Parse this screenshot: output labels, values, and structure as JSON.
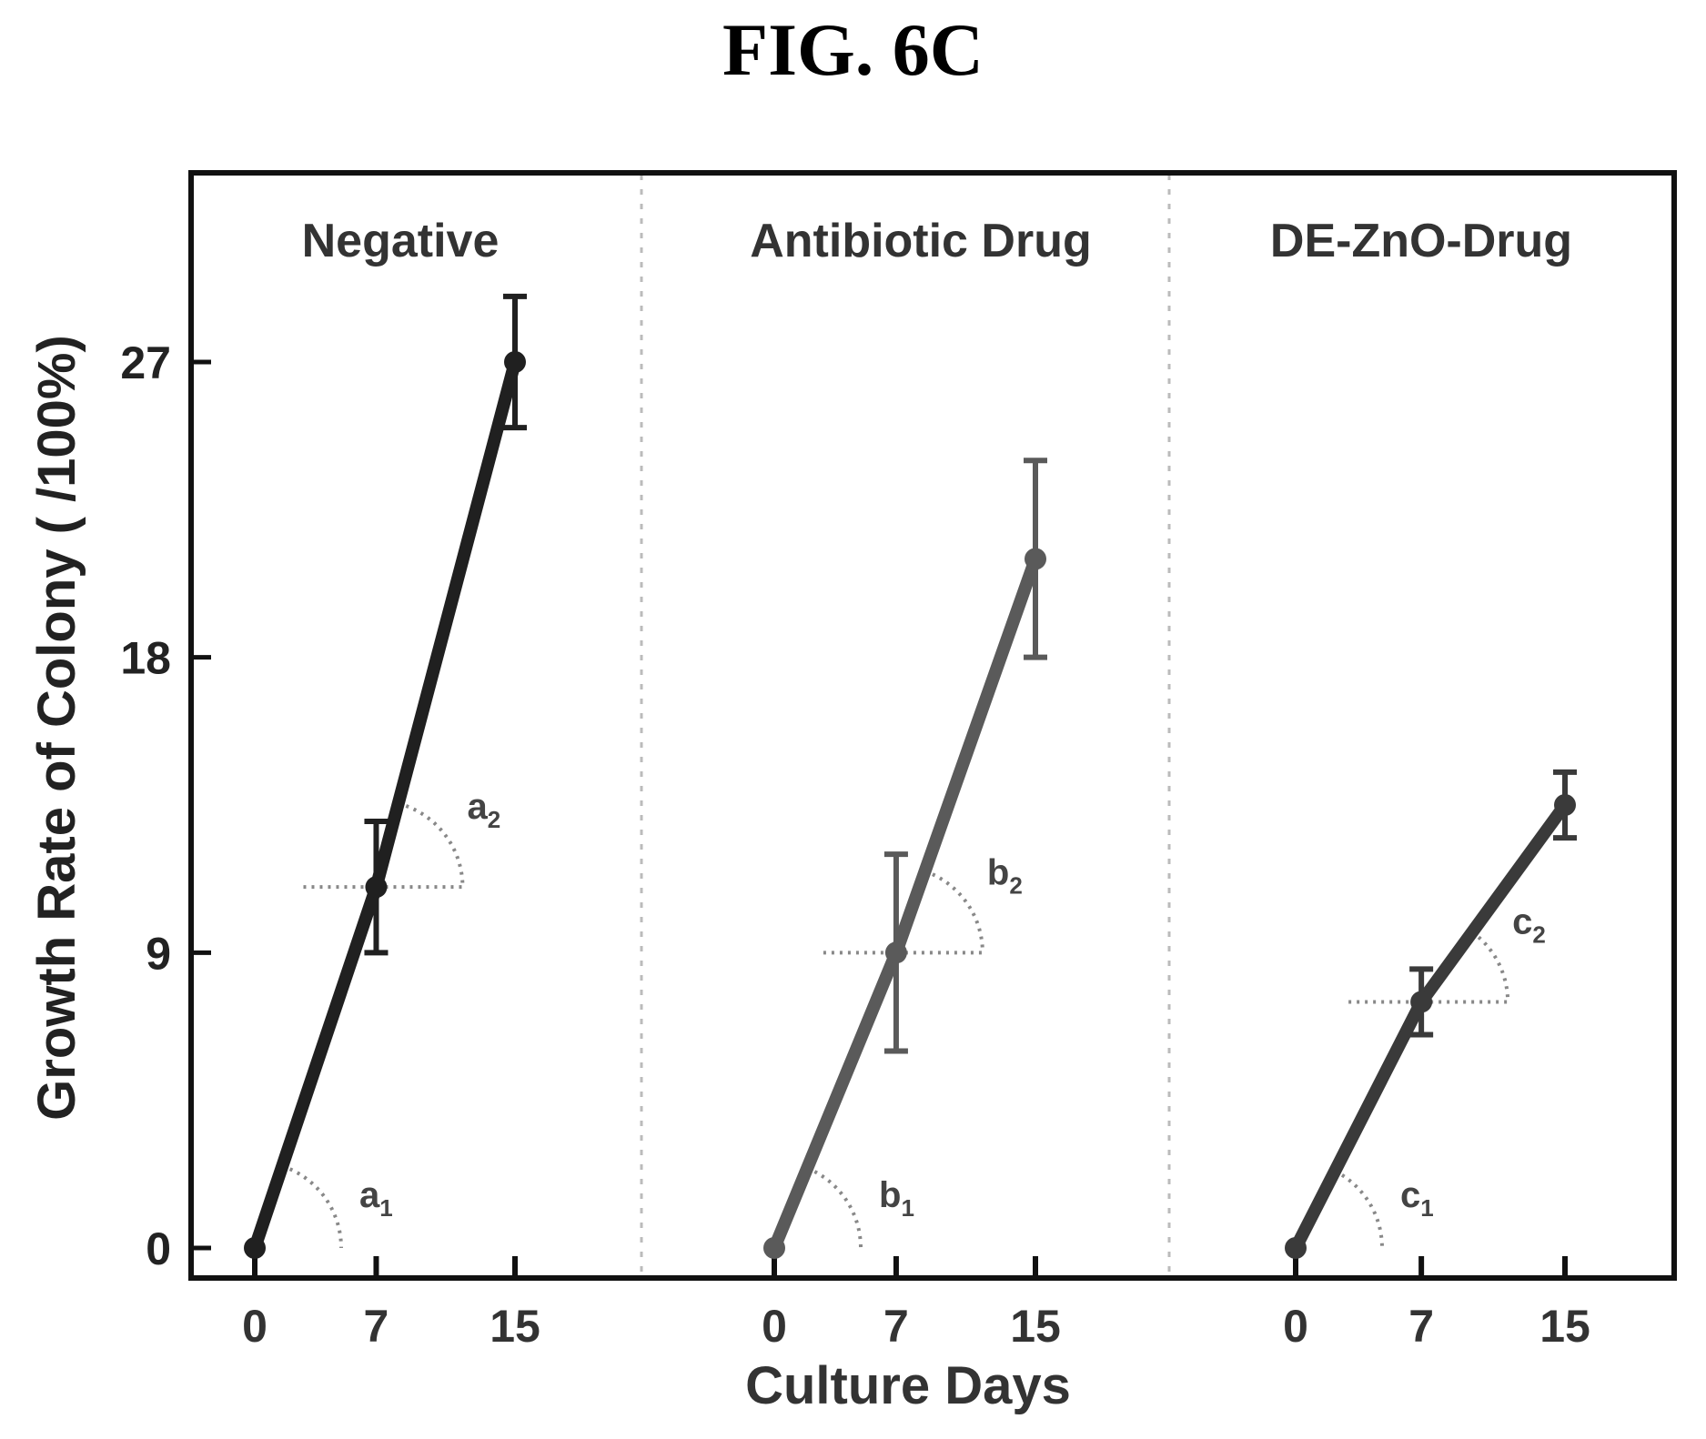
{
  "figure_title": "FIG. 6C",
  "chart_data": {
    "type": "line",
    "ylabel": "Growth Rate of Colony ( /100%)",
    "xlabel": "Culture Days",
    "ylim": [
      0,
      30
    ],
    "yticks": [
      0,
      9,
      18,
      27
    ],
    "xticks": [
      0,
      7,
      15
    ],
    "grid": false,
    "panels": [
      {
        "title": "Negative",
        "color": "#202020",
        "x": [
          0,
          7,
          15
        ],
        "y": [
          0,
          11,
          27
        ],
        "yerr": [
          0,
          2,
          2
        ],
        "angle_labels": [
          {
            "main": "a",
            "sub": "1"
          },
          {
            "main": "a",
            "sub": "2"
          }
        ]
      },
      {
        "title": "Antibiotic Drug",
        "color": "#5a5a5a",
        "x": [
          0,
          7,
          15
        ],
        "y": [
          0,
          9,
          21
        ],
        "yerr": [
          0,
          3,
          3
        ],
        "angle_labels": [
          {
            "main": "b",
            "sub": "1"
          },
          {
            "main": "b",
            "sub": "2"
          }
        ]
      },
      {
        "title": "DE-ZnO-Drug",
        "color": "#3a3a3a",
        "x": [
          0,
          7,
          15
        ],
        "y": [
          0,
          7.5,
          13.5
        ],
        "yerr": [
          0,
          1,
          1
        ],
        "angle_labels": [
          {
            "main": "c",
            "sub": "1"
          },
          {
            "main": "c",
            "sub": "2"
          }
        ]
      }
    ]
  }
}
